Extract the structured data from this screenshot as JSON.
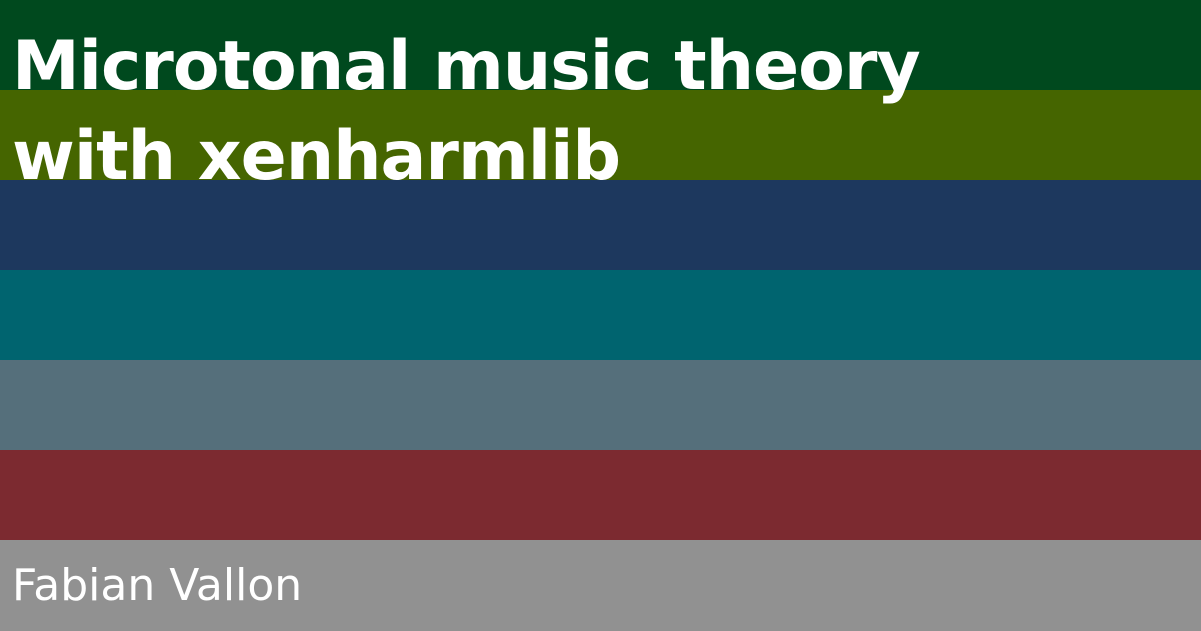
{
  "title_lines": [
    "Microtonal music theory",
    "with xenharmlib"
  ],
  "author": "Fabian Vallon",
  "stripe_colors": [
    "#00491e",
    "#456500",
    "#1d385e",
    "#00646f",
    "#556f7b",
    "#7c2a30",
    "#919191"
  ],
  "text_color": "#ffffff"
}
